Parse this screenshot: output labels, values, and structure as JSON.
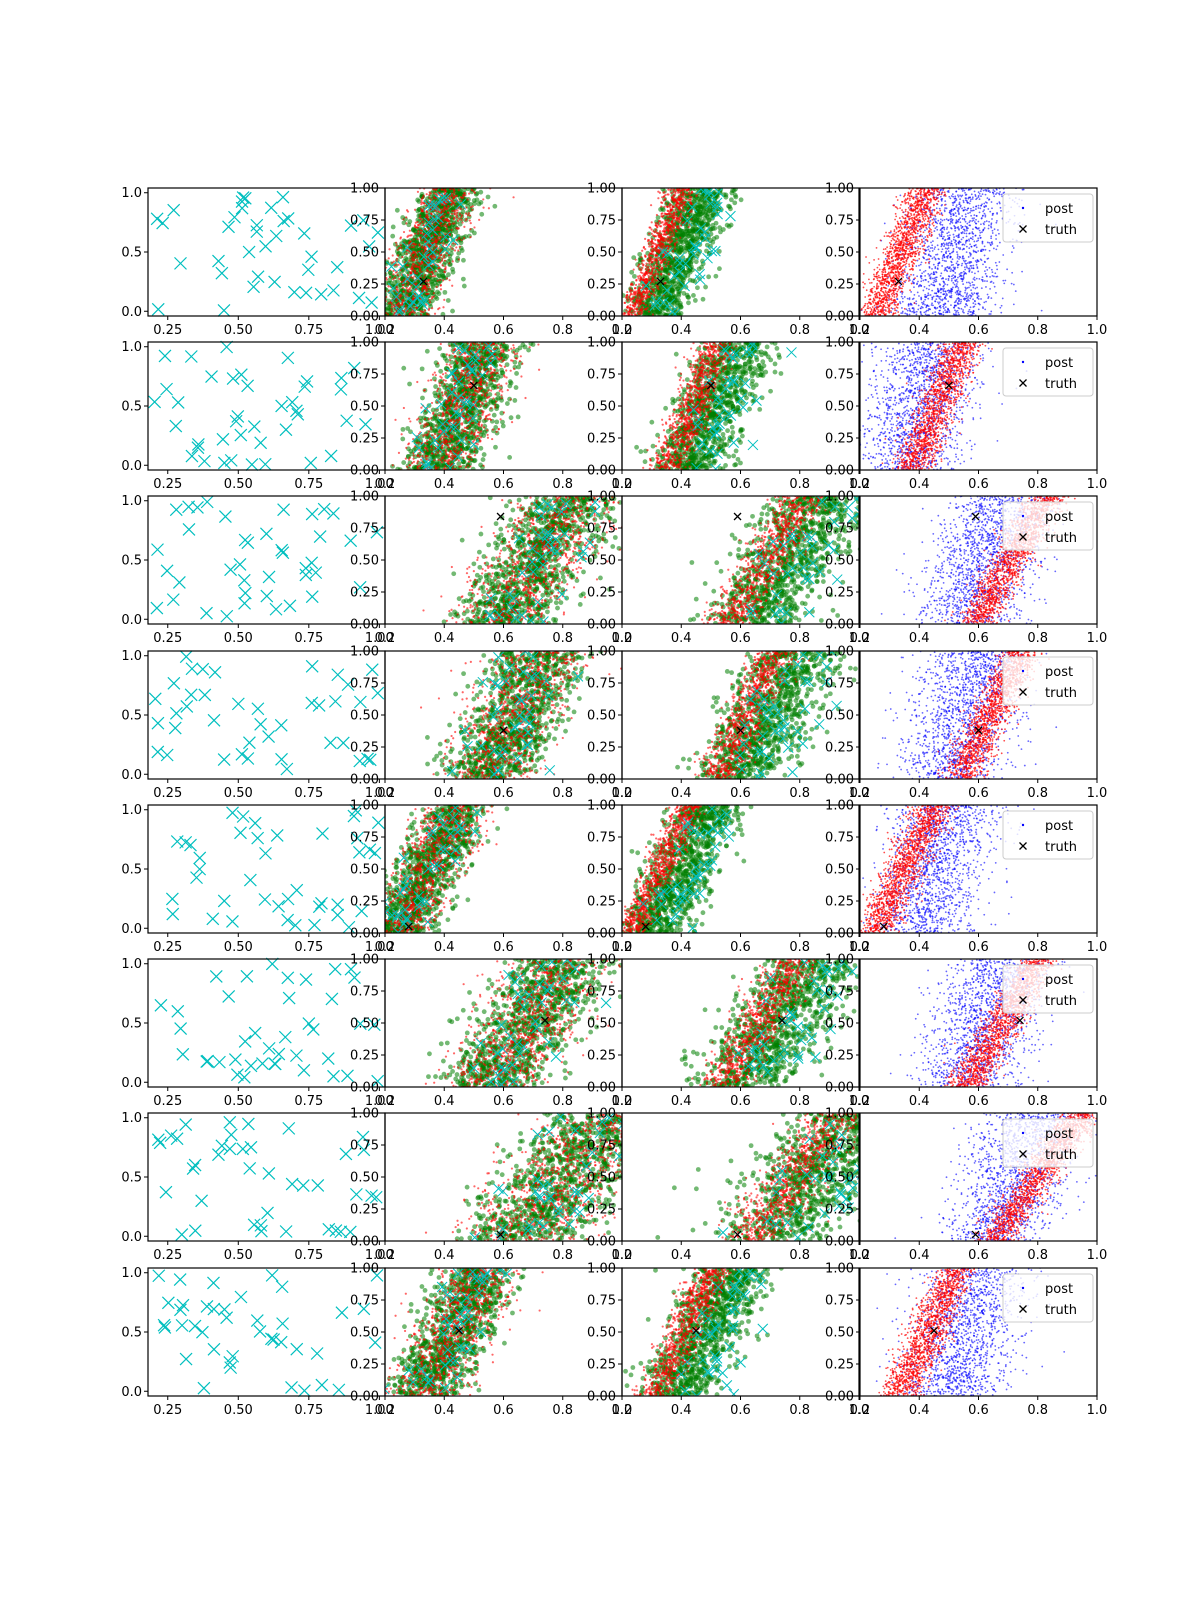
{
  "chart_data": {
    "type": "scatter",
    "grid": false,
    "layout": {
      "rows": 8,
      "cols": 4
    },
    "colors": {
      "observations": "#00bfbf",
      "prior_samples": "#ff0000",
      "posterior_samples": "#008000",
      "post": "#0000ff",
      "truth": "#000000"
    },
    "legend_entries": [
      "post",
      "truth"
    ],
    "legend_placement": "upper right",
    "panel_axes": {
      "col0": {
        "xlim": [
          0.18,
          1.02
        ],
        "ylim": [
          -0.04,
          1.04
        ]
      },
      "col123": {
        "xlim": [
          0.2,
          1.0
        ],
        "ylim": [
          0.0,
          1.0
        ]
      }
    },
    "col0_xticks": [
      "0.25",
      "0.50",
      "0.75",
      "1.00"
    ],
    "col0_yticks": [
      "0.0",
      "0.5",
      "1.0"
    ],
    "col123_xticks": [
      "0.2",
      "0.4",
      "0.6",
      "0.8",
      "1.0"
    ],
    "col123_yticks": [
      "0.00",
      "0.25",
      "0.50",
      "0.75",
      "1.00"
    ],
    "rows": [
      {
        "truth": [
          0.33,
          0.27
        ],
        "slope": 0.17,
        "center_x": 0.34,
        "spread": 0.12,
        "blue_center_x": 0.52,
        "legend": true
      },
      {
        "truth": [
          0.5,
          0.66
        ],
        "slope": 0.17,
        "center_x": 0.46,
        "spread": 0.15,
        "blue_center_x": 0.4,
        "legend": true
      },
      {
        "truth": [
          0.59,
          0.84
        ],
        "slope": 0.25,
        "center_x": 0.71,
        "spread": 0.2,
        "blue_center_x": 0.62,
        "legend": true
      },
      {
        "truth": [
          0.6,
          0.38
        ],
        "slope": 0.2,
        "center_x": 0.64,
        "spread": 0.18,
        "blue_center_x": 0.55,
        "legend": true
      },
      {
        "truth": [
          0.28,
          0.05
        ],
        "slope": 0.2,
        "center_x": 0.35,
        "spread": 0.13,
        "blue_center_x": 0.45,
        "legend": true
      },
      {
        "truth": [
          0.74,
          0.52
        ],
        "slope": 0.25,
        "center_x": 0.68,
        "spread": 0.2,
        "blue_center_x": 0.62,
        "legend": true
      },
      {
        "truth": [
          0.59,
          0.05
        ],
        "slope": 0.3,
        "center_x": 0.8,
        "spread": 0.25,
        "blue_center_x": 0.72,
        "legend": true
      },
      {
        "truth": [
          0.45,
          0.51
        ],
        "slope": 0.2,
        "center_x": 0.43,
        "spread": 0.15,
        "blue_center_x": 0.55,
        "legend": true
      }
    ]
  }
}
